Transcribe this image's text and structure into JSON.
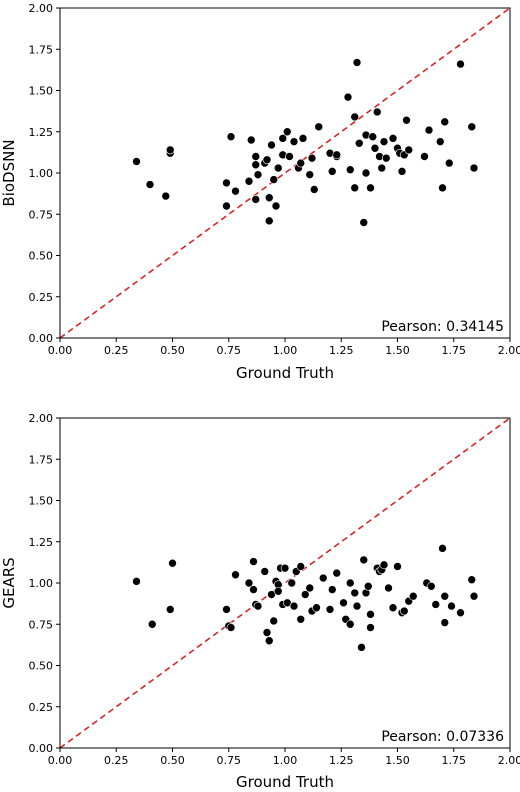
{
  "chart_data": [
    {
      "type": "scatter",
      "title": "",
      "xlabel": "Ground Truth",
      "ylabel": "BioDSNN",
      "xlim": [
        0,
        2
      ],
      "ylim": [
        0,
        2
      ],
      "xticks": [
        "0.00",
        "0.25",
        "0.50",
        "0.75",
        "1.00",
        "1.25",
        "1.50",
        "1.75",
        "2.00"
      ],
      "yticks": [
        "0.00",
        "0.25",
        "0.50",
        "0.75",
        "1.00",
        "1.25",
        "1.50",
        "1.75",
        "2.00"
      ],
      "grid": false,
      "reference_line": {
        "from": [
          0,
          0
        ],
        "to": [
          2,
          2
        ],
        "style": "dashed",
        "color": "#d62728"
      },
      "annotation": "Pearson: 0.34145",
      "point_color": "#000000",
      "points": [
        [
          0.34,
          1.07
        ],
        [
          0.4,
          0.93
        ],
        [
          0.47,
          0.86
        ],
        [
          0.49,
          1.12
        ],
        [
          0.49,
          1.14
        ],
        [
          0.74,
          0.8
        ],
        [
          0.74,
          0.94
        ],
        [
          0.76,
          1.22
        ],
        [
          0.78,
          0.89
        ],
        [
          0.84,
          0.95
        ],
        [
          0.85,
          1.2
        ],
        [
          0.87,
          0.84
        ],
        [
          0.87,
          1.05
        ],
        [
          0.87,
          1.1
        ],
        [
          0.88,
          0.99
        ],
        [
          0.91,
          1.06
        ],
        [
          0.92,
          1.08
        ],
        [
          0.93,
          0.71
        ],
        [
          0.93,
          0.85
        ],
        [
          0.94,
          1.17
        ],
        [
          0.95,
          0.96
        ],
        [
          0.96,
          0.8
        ],
        [
          0.97,
          1.03
        ],
        [
          0.99,
          1.11
        ],
        [
          0.99,
          1.21
        ],
        [
          1.01,
          1.25
        ],
        [
          1.02,
          1.1
        ],
        [
          1.04,
          1.19
        ],
        [
          1.06,
          1.03
        ],
        [
          1.07,
          1.06
        ],
        [
          1.08,
          1.21
        ],
        [
          1.11,
          0.99
        ],
        [
          1.12,
          1.09
        ],
        [
          1.13,
          0.9
        ],
        [
          1.15,
          1.28
        ],
        [
          1.2,
          1.12
        ],
        [
          1.21,
          1.01
        ],
        [
          1.23,
          1.1
        ],
        [
          1.23,
          1.11
        ],
        [
          1.28,
          1.46
        ],
        [
          1.29,
          1.02
        ],
        [
          1.31,
          0.91
        ],
        [
          1.31,
          1.34
        ],
        [
          1.32,
          1.67
        ],
        [
          1.33,
          1.18
        ],
        [
          1.35,
          0.7
        ],
        [
          1.36,
          1.23
        ],
        [
          1.36,
          1.0
        ],
        [
          1.38,
          0.91
        ],
        [
          1.39,
          1.22
        ],
        [
          1.4,
          1.15
        ],
        [
          1.41,
          1.37
        ],
        [
          1.42,
          1.1
        ],
        [
          1.43,
          1.03
        ],
        [
          1.44,
          1.19
        ],
        [
          1.45,
          1.09
        ],
        [
          1.48,
          1.21
        ],
        [
          1.5,
          1.15
        ],
        [
          1.51,
          1.12
        ],
        [
          1.52,
          1.01
        ],
        [
          1.53,
          1.11
        ],
        [
          1.54,
          1.32
        ],
        [
          1.55,
          1.14
        ],
        [
          1.62,
          1.1
        ],
        [
          1.64,
          1.26
        ],
        [
          1.69,
          1.19
        ],
        [
          1.7,
          0.91
        ],
        [
          1.71,
          1.31
        ],
        [
          1.73,
          1.06
        ],
        [
          1.78,
          1.66
        ],
        [
          1.83,
          1.28
        ],
        [
          1.84,
          1.03
        ]
      ]
    },
    {
      "type": "scatter",
      "title": "",
      "xlabel": "Ground Truth",
      "ylabel": "GEARS",
      "xlim": [
        0,
        2
      ],
      "ylim": [
        0,
        2
      ],
      "xticks": [
        "0.00",
        "0.25",
        "0.50",
        "0.75",
        "1.00",
        "1.25",
        "1.50",
        "1.75",
        "2.00"
      ],
      "yticks": [
        "0.00",
        "0.25",
        "0.50",
        "0.75",
        "1.00",
        "1.25",
        "1.50",
        "1.75",
        "2.00"
      ],
      "grid": false,
      "reference_line": {
        "from": [
          0,
          0
        ],
        "to": [
          2,
          2
        ],
        "style": "dashed",
        "color": "#d62728"
      },
      "annotation": "Pearson: 0.07336",
      "point_color": "#000000",
      "points": [
        [
          0.34,
          1.01
        ],
        [
          0.41,
          0.75
        ],
        [
          0.49,
          0.84
        ],
        [
          0.5,
          1.12
        ],
        [
          0.74,
          0.84
        ],
        [
          0.75,
          0.74
        ],
        [
          0.76,
          0.73
        ],
        [
          0.78,
          1.05
        ],
        [
          0.84,
          1.0
        ],
        [
          0.86,
          0.96
        ],
        [
          0.86,
          1.13
        ],
        [
          0.87,
          0.87
        ],
        [
          0.88,
          0.86
        ],
        [
          0.91,
          1.07
        ],
        [
          0.92,
          0.7
        ],
        [
          0.93,
          0.65
        ],
        [
          0.94,
          0.93
        ],
        [
          0.95,
          0.77
        ],
        [
          0.96,
          1.01
        ],
        [
          0.97,
          0.99
        ],
        [
          0.97,
          0.95
        ],
        [
          0.98,
          1.09
        ],
        [
          0.99,
          0.87
        ],
        [
          1.0,
          1.09
        ],
        [
          1.01,
          0.88
        ],
        [
          1.03,
          1.0
        ],
        [
          1.04,
          0.86
        ],
        [
          1.05,
          1.07
        ],
        [
          1.07,
          1.1
        ],
        [
          1.07,
          0.78
        ],
        [
          1.09,
          0.93
        ],
        [
          1.11,
          0.97
        ],
        [
          1.12,
          0.83
        ],
        [
          1.14,
          0.85
        ],
        [
          1.17,
          1.03
        ],
        [
          1.2,
          0.84
        ],
        [
          1.21,
          0.96
        ],
        [
          1.23,
          1.06
        ],
        [
          1.26,
          0.88
        ],
        [
          1.27,
          0.78
        ],
        [
          1.29,
          1.0
        ],
        [
          1.29,
          0.75
        ],
        [
          1.31,
          0.94
        ],
        [
          1.32,
          0.86
        ],
        [
          1.34,
          0.61
        ],
        [
          1.35,
          1.14
        ],
        [
          1.36,
          0.94
        ],
        [
          1.37,
          0.98
        ],
        [
          1.38,
          0.73
        ],
        [
          1.38,
          0.81
        ],
        [
          1.41,
          1.09
        ],
        [
          1.42,
          1.07
        ],
        [
          1.43,
          1.08
        ],
        [
          1.44,
          1.11
        ],
        [
          1.46,
          0.97
        ],
        [
          1.48,
          0.85
        ],
        [
          1.5,
          1.1
        ],
        [
          1.52,
          0.82
        ],
        [
          1.53,
          0.83
        ],
        [
          1.55,
          0.89
        ],
        [
          1.57,
          0.92
        ],
        [
          1.63,
          1.0
        ],
        [
          1.65,
          0.98
        ],
        [
          1.67,
          0.87
        ],
        [
          1.7,
          1.21
        ],
        [
          1.71,
          0.76
        ],
        [
          1.71,
          0.92
        ],
        [
          1.74,
          0.86
        ],
        [
          1.78,
          0.82
        ],
        [
          1.83,
          1.02
        ],
        [
          1.84,
          0.92
        ]
      ]
    }
  ]
}
